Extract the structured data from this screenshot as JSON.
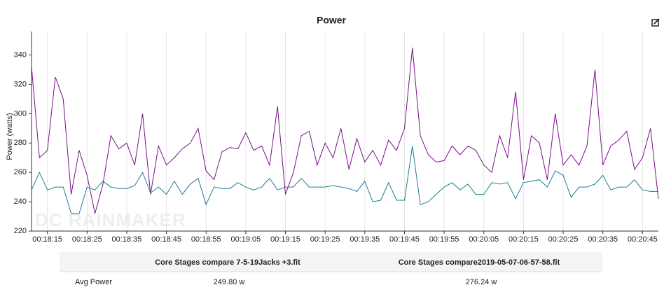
{
  "chart_data": {
    "type": "line",
    "title": "Power",
    "ylabel": "Power (watts)",
    "watermark": "DC RAINMAKER",
    "x": [
      "00:18:11",
      "00:18:13",
      "00:18:15",
      "00:18:17",
      "00:18:19",
      "00:18:21",
      "00:18:23",
      "00:18:25",
      "00:18:27",
      "00:18:29",
      "00:18:31",
      "00:18:33",
      "00:18:35",
      "00:18:37",
      "00:18:39",
      "00:18:41",
      "00:18:43",
      "00:18:45",
      "00:18:47",
      "00:18:49",
      "00:18:51",
      "00:18:53",
      "00:18:55",
      "00:18:57",
      "00:18:59",
      "00:19:01",
      "00:19:03",
      "00:19:05",
      "00:19:07",
      "00:19:09",
      "00:19:11",
      "00:19:13",
      "00:19:15",
      "00:19:17",
      "00:19:19",
      "00:19:21",
      "00:19:23",
      "00:19:25",
      "00:19:27",
      "00:19:29",
      "00:19:31",
      "00:19:33",
      "00:19:35",
      "00:19:37",
      "00:19:39",
      "00:19:41",
      "00:19:43",
      "00:19:45",
      "00:19:47",
      "00:19:49",
      "00:19:51",
      "00:19:53",
      "00:19:55",
      "00:19:57",
      "00:19:59",
      "00:20:01",
      "00:20:03",
      "00:20:05",
      "00:20:07",
      "00:20:09",
      "00:20:11",
      "00:20:13",
      "00:20:15",
      "00:20:17",
      "00:20:19",
      "00:20:21",
      "00:20:23",
      "00:20:25",
      "00:20:27",
      "00:20:29",
      "00:20:31",
      "00:20:33",
      "00:20:35",
      "00:20:37",
      "00:20:39",
      "00:20:41",
      "00:20:43",
      "00:20:45",
      "00:20:47",
      "00:20:49"
    ],
    "series": [
      {
        "name": "Core Stages compare2019-05-07-06-57-58.fit",
        "color": "#7a0e8c",
        "values": [
          332,
          270,
          275,
          325,
          310,
          245,
          275,
          258,
          232,
          252,
          285,
          276,
          280,
          265,
          300,
          245,
          278,
          265,
          270,
          276,
          280,
          290,
          261,
          255,
          274,
          277,
          276,
          287,
          275,
          278,
          265,
          305,
          245,
          260,
          285,
          288,
          265,
          280,
          270,
          290,
          262,
          283,
          267,
          275,
          265,
          282,
          275,
          290,
          345,
          285,
          272,
          267,
          268,
          278,
          272,
          278,
          275,
          265,
          260,
          285,
          270,
          315,
          255,
          285,
          280,
          255,
          300,
          265,
          272,
          265,
          278,
          330,
          265,
          278,
          282,
          288,
          262,
          270,
          290,
          242
        ]
      },
      {
        "name": "Core Stages compare 7-5-19Jacks +3.fit",
        "color": "#1b7f8f",
        "values": [
          248,
          260,
          248,
          250,
          250,
          232,
          232,
          250,
          248,
          254,
          250,
          249,
          249,
          251,
          260,
          246,
          250,
          245,
          254,
          245,
          252,
          256,
          238,
          250,
          249,
          249,
          253,
          250,
          248,
          250,
          256,
          248,
          250,
          250,
          256,
          250,
          250,
          250,
          251,
          250,
          249,
          247,
          254,
          240,
          241,
          253,
          241,
          241,
          278,
          238,
          240,
          245,
          250,
          253,
          248,
          252,
          245,
          245,
          253,
          252,
          253,
          242,
          253,
          254,
          255,
          250,
          261,
          258,
          243,
          250,
          250,
          252,
          258,
          248,
          250,
          250,
          255,
          248,
          247,
          247
        ]
      }
    ],
    "xlim": [
      "00:18:11",
      "00:20:49"
    ],
    "xticks": [
      "00:18:15",
      "00:18:25",
      "00:18:35",
      "00:18:45",
      "00:18:55",
      "00:19:05",
      "00:19:15",
      "00:19:25",
      "00:19:35",
      "00:19:45",
      "00:19:55",
      "00:20:05",
      "00:20:15",
      "00:20:25",
      "00:20:35",
      "00:20:45"
    ],
    "ylim": [
      220,
      356
    ],
    "yticks": [
      220,
      240,
      260,
      280,
      300,
      320,
      340
    ],
    "grid": true
  },
  "table": {
    "header": [
      "Core Stages compare 7-5-19Jacks +3.fit",
      "Core Stages compare2019-05-07-06-57-58.fit"
    ],
    "rows": [
      [
        "Avg Power",
        "249.80 w",
        "276.24 w"
      ]
    ]
  }
}
